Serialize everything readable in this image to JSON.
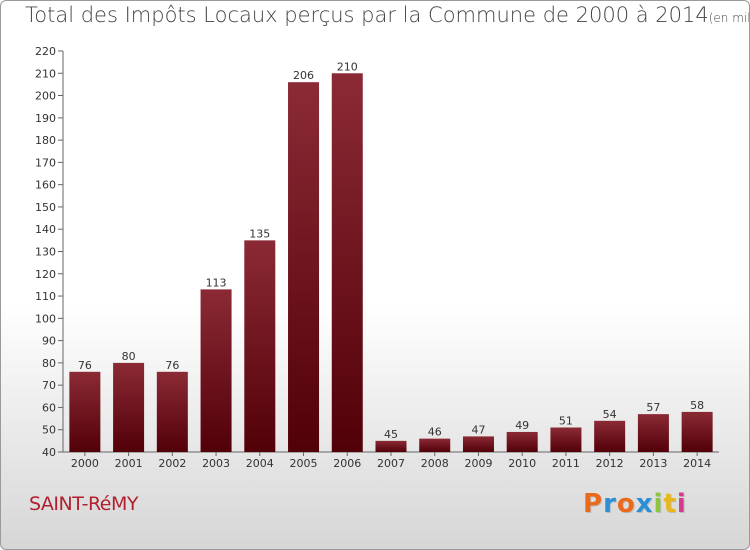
{
  "header": {
    "title": "Total des Impôts Locaux perçus par la Commune de 2000 à 2014",
    "unit": "(en milliers d'€)"
  },
  "footer": {
    "commune": "SAINT-RéMY",
    "logo_text": "Proxiti",
    "logo_colors": [
      "#e86a1a",
      "#2b8fd6",
      "#e86a1a",
      "#2b8fd6",
      "#8cc63f",
      "#e8b81a",
      "#d63a8c"
    ]
  },
  "chart_data": {
    "type": "bar",
    "title": "Total des Impôts Locaux perçus par la Commune de 2000 à 2014",
    "unit": "(en milliers d'€)",
    "xlabel": "",
    "ylabel": "",
    "categories": [
      "2000",
      "2001",
      "2002",
      "2003",
      "2004",
      "2005",
      "2006",
      "2007",
      "2008",
      "2009",
      "2010",
      "2011",
      "2012",
      "2013",
      "2014"
    ],
    "values": [
      76,
      80,
      76,
      113,
      135,
      206,
      210,
      45,
      46,
      47,
      49,
      51,
      54,
      57,
      58
    ],
    "ylim": [
      40,
      220
    ],
    "yticks": [
      40,
      50,
      60,
      70,
      80,
      90,
      100,
      110,
      120,
      130,
      140,
      150,
      160,
      170,
      180,
      190,
      200,
      210,
      220
    ],
    "grid": false,
    "bar_color_top": "#8b2a35",
    "bar_color_bottom": "#520008"
  }
}
